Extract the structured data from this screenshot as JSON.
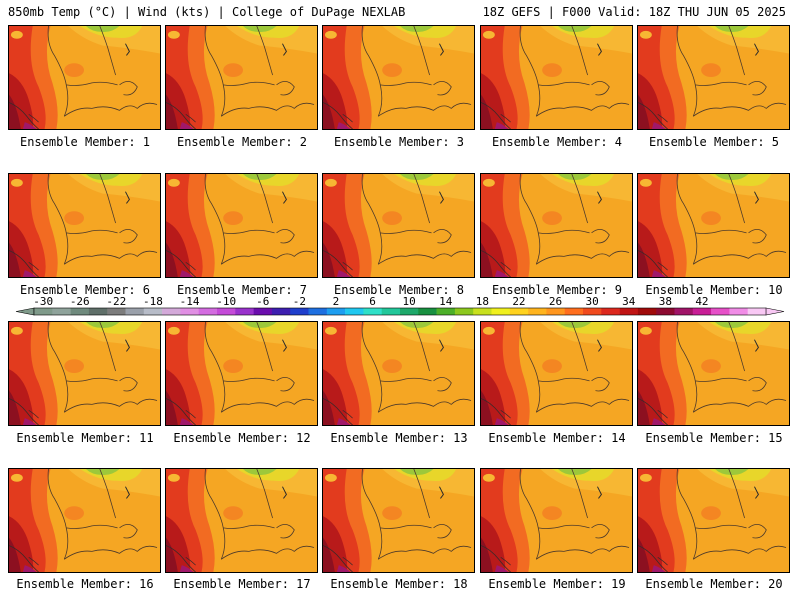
{
  "header": {
    "left": "850mb Temp (°C) | Wind (kts) | College of DuPage NEXLAB",
    "right": "18Z GEFS | F000 Valid: 18Z THU JUN 05 2025"
  },
  "members": [
    "Ensemble Member: 1",
    "Ensemble Member: 2",
    "Ensemble Member: 3",
    "Ensemble Member: 4",
    "Ensemble Member: 5",
    "Ensemble Member: 6",
    "Ensemble Member: 7",
    "Ensemble Member: 8",
    "Ensemble Member: 9",
    "Ensemble Member: 10",
    "Ensemble Member: 11",
    "Ensemble Member: 12",
    "Ensemble Member: 13",
    "Ensemble Member: 14",
    "Ensemble Member: 15",
    "Ensemble Member: 16",
    "Ensemble Member: 17",
    "Ensemble Member: 18",
    "Ensemble Member: 19",
    "Ensemble Member: 20"
  ],
  "colorbar": {
    "tick_labels": [
      "-30",
      "-26",
      "-22",
      "-18",
      "-14",
      "-10",
      "-6",
      "-2",
      "2",
      "6",
      "10",
      "14",
      "18",
      "22",
      "26",
      "30",
      "34",
      "38",
      "42"
    ],
    "colors": [
      "#7f9a8a",
      "#8fa39b",
      "#6f8a7d",
      "#5f6f69",
      "#7c7c7c",
      "#9aa0aa",
      "#b7bcc8",
      "#d3a9d9",
      "#e08fe3",
      "#d36ce0",
      "#c44bd8",
      "#9932cc",
      "#6a0dad",
      "#3d1fb0",
      "#1f3fcc",
      "#1e6fe0",
      "#1e9ef0",
      "#20c8f0",
      "#2fe0c8",
      "#22c79a",
      "#1ea86a",
      "#189040",
      "#4caf28",
      "#8cc81e",
      "#c8e01e",
      "#f0f01e",
      "#ffd21e",
      "#ffb41e",
      "#ff961e",
      "#ff6e1e",
      "#f04a1e",
      "#dc281e",
      "#c01414",
      "#a00a0a",
      "#8c0a30",
      "#a01468",
      "#c81e96",
      "#e650c8",
      "#f08ce6",
      "#f8c8f4"
    ]
  },
  "map_colors": {
    "orange": "#f5a623",
    "light_orange": "#f7b733",
    "yellow": "#e8d62a",
    "green": "#9dc83a",
    "red_orange": "#f26b22",
    "red": "#e23b1e",
    "dark_red": "#b81a1a",
    "maroon": "#8c1020",
    "magenta": "#a0186a"
  }
}
